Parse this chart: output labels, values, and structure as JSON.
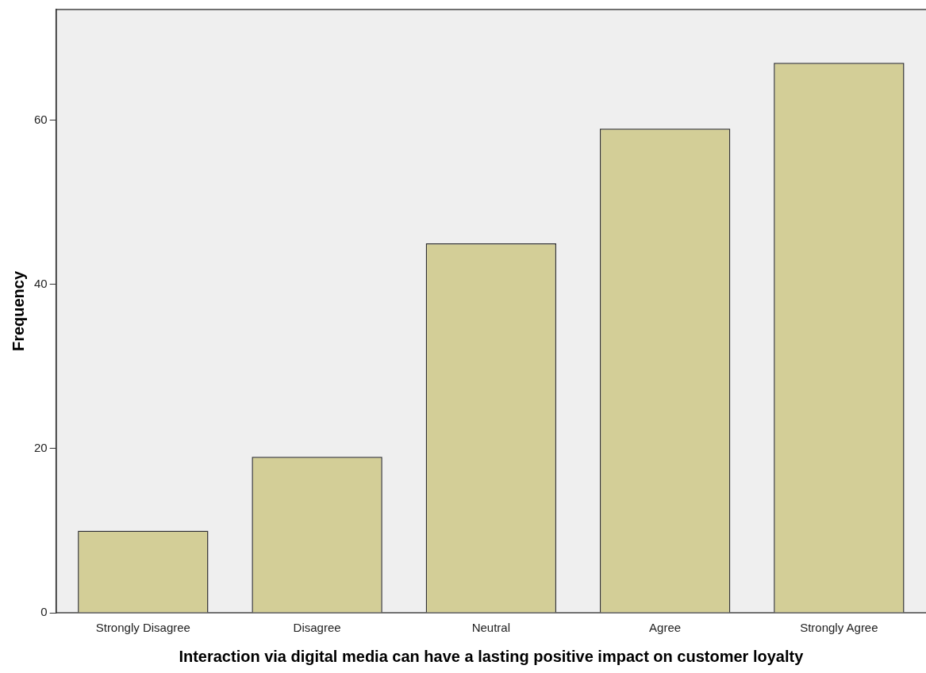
{
  "chart_data": {
    "type": "bar",
    "xlabel": "Interaction via digital media can have a lasting positive impact on customer loyalty",
    "ylabel": "Frequency",
    "categories": [
      "Strongly Disagree",
      "Disagree",
      "Neutral",
      "Agree",
      "Strongly Agree"
    ],
    "values": [
      10,
      19,
      45,
      59,
      67
    ],
    "color": "#d3ce97",
    "ylim": [
      0,
      73.5
    ],
    "yticks": [
      0,
      20,
      40,
      60
    ],
    "grid": false,
    "legend": false
  }
}
